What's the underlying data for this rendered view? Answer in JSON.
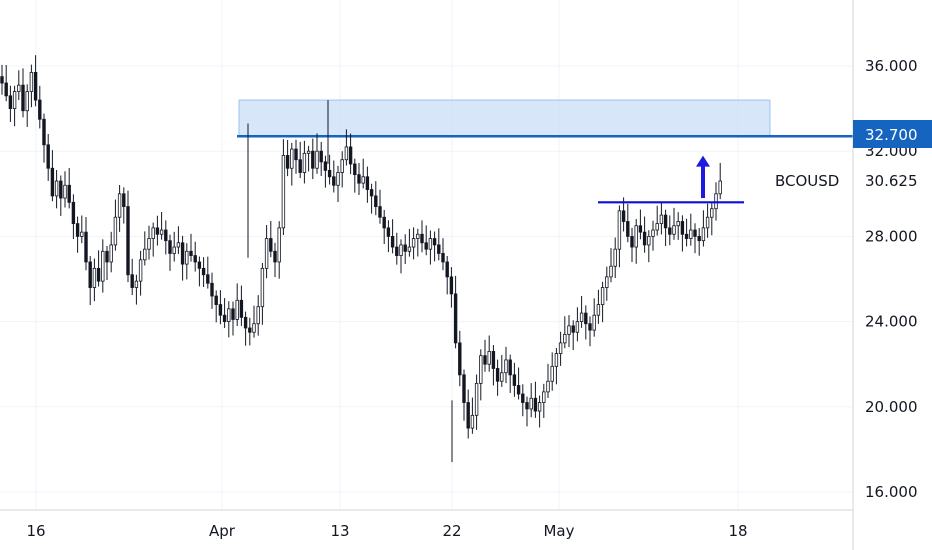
{
  "chart_data": {
    "type": "candlestick",
    "symbol": "BCOUSD",
    "last_price": 30.625,
    "last_price_label": "30.625",
    "resistance_level": 32.7,
    "resistance_level_label": "32.700",
    "breakout_level": 29.6,
    "resistance_zone": [
      32.7,
      34.4
    ],
    "y_ticks": [
      16,
      20,
      24,
      28,
      32,
      36
    ],
    "y_tick_labels": [
      "16.000",
      "20.000",
      "24.000",
      "28.000",
      "32.000",
      "36.000"
    ],
    "x_tick_labels": [
      "16",
      "Apr",
      "13",
      "22",
      "May",
      "18"
    ],
    "ylim": [
      14.5,
      38.5
    ],
    "grid": true,
    "colors": {
      "candle": "#131722",
      "resistance_line": "#1565c0",
      "resistance_zone": "#c6dcf6",
      "breakout_line": "#0d0dd8",
      "arrow": "#1a1ae0",
      "price_tag": "#1565c0"
    },
    "closes": [
      35.2,
      34.6,
      34.0,
      34.8,
      35.1,
      33.9,
      34.8,
      35.7,
      34.4,
      33.5,
      32.3,
      31.2,
      29.9,
      30.6,
      29.8,
      30.4,
      29.6,
      28.6,
      28.0,
      28.2,
      26.8,
      25.6,
      26.5,
      25.9,
      27.3,
      26.8,
      27.6,
      28.9,
      30.0,
      29.4,
      26.2,
      25.6,
      25.9,
      26.9,
      27.4,
      27.9,
      28.4,
      28.1,
      28.3,
      27.8,
      27.2,
      27.5,
      27.7,
      26.7,
      27.3,
      27.1,
      26.8,
      26.5,
      26.2,
      25.8,
      25.2,
      24.8,
      24.3,
      24.0,
      24.6,
      24.1,
      25.0,
      24.2,
      23.7,
      23.5,
      23.9,
      24.7,
      26.5,
      27.9,
      27.3,
      26.8,
      28.4,
      31.8,
      31.2,
      32.1,
      31.6,
      31.0,
      31.9,
      32.0,
      31.2,
      32.0,
      31.5,
      31.1,
      30.8,
      30.4,
      31.0,
      31.6,
      32.2,
      31.4,
      30.9,
      30.5,
      30.8,
      30.2,
      29.9,
      29.4,
      28.9,
      28.4,
      28.0,
      27.5,
      27.1,
      27.6,
      27.3,
      27.5,
      27.9,
      28.1,
      27.7,
      27.4,
      27.9,
      27.6,
      27.2,
      26.8,
      26.1,
      25.3,
      23.0,
      21.5,
      20.2,
      19.0,
      19.6,
      21.1,
      22.4,
      22.0,
      22.6,
      21.8,
      21.2,
      21.6,
      22.2,
      21.5,
      21.0,
      20.6,
      20.2,
      19.9,
      20.4,
      19.8,
      20.2,
      20.7,
      21.2,
      21.9,
      22.5,
      23.0,
      23.4,
      23.8,
      23.5,
      24.0,
      24.4,
      23.9,
      23.6,
      24.3,
      24.8,
      25.6,
      26.1,
      26.6,
      27.4,
      29.2,
      28.7,
      28.0,
      27.5,
      28.5,
      28.2,
      27.6,
      28.0,
      28.3,
      28.6,
      29.0,
      28.4,
      28.1,
      28.5,
      28.7,
      28.1,
      27.9,
      28.3,
      28.0,
      27.8,
      28.4,
      28.9,
      29.3,
      30.0,
      30.6
    ]
  }
}
